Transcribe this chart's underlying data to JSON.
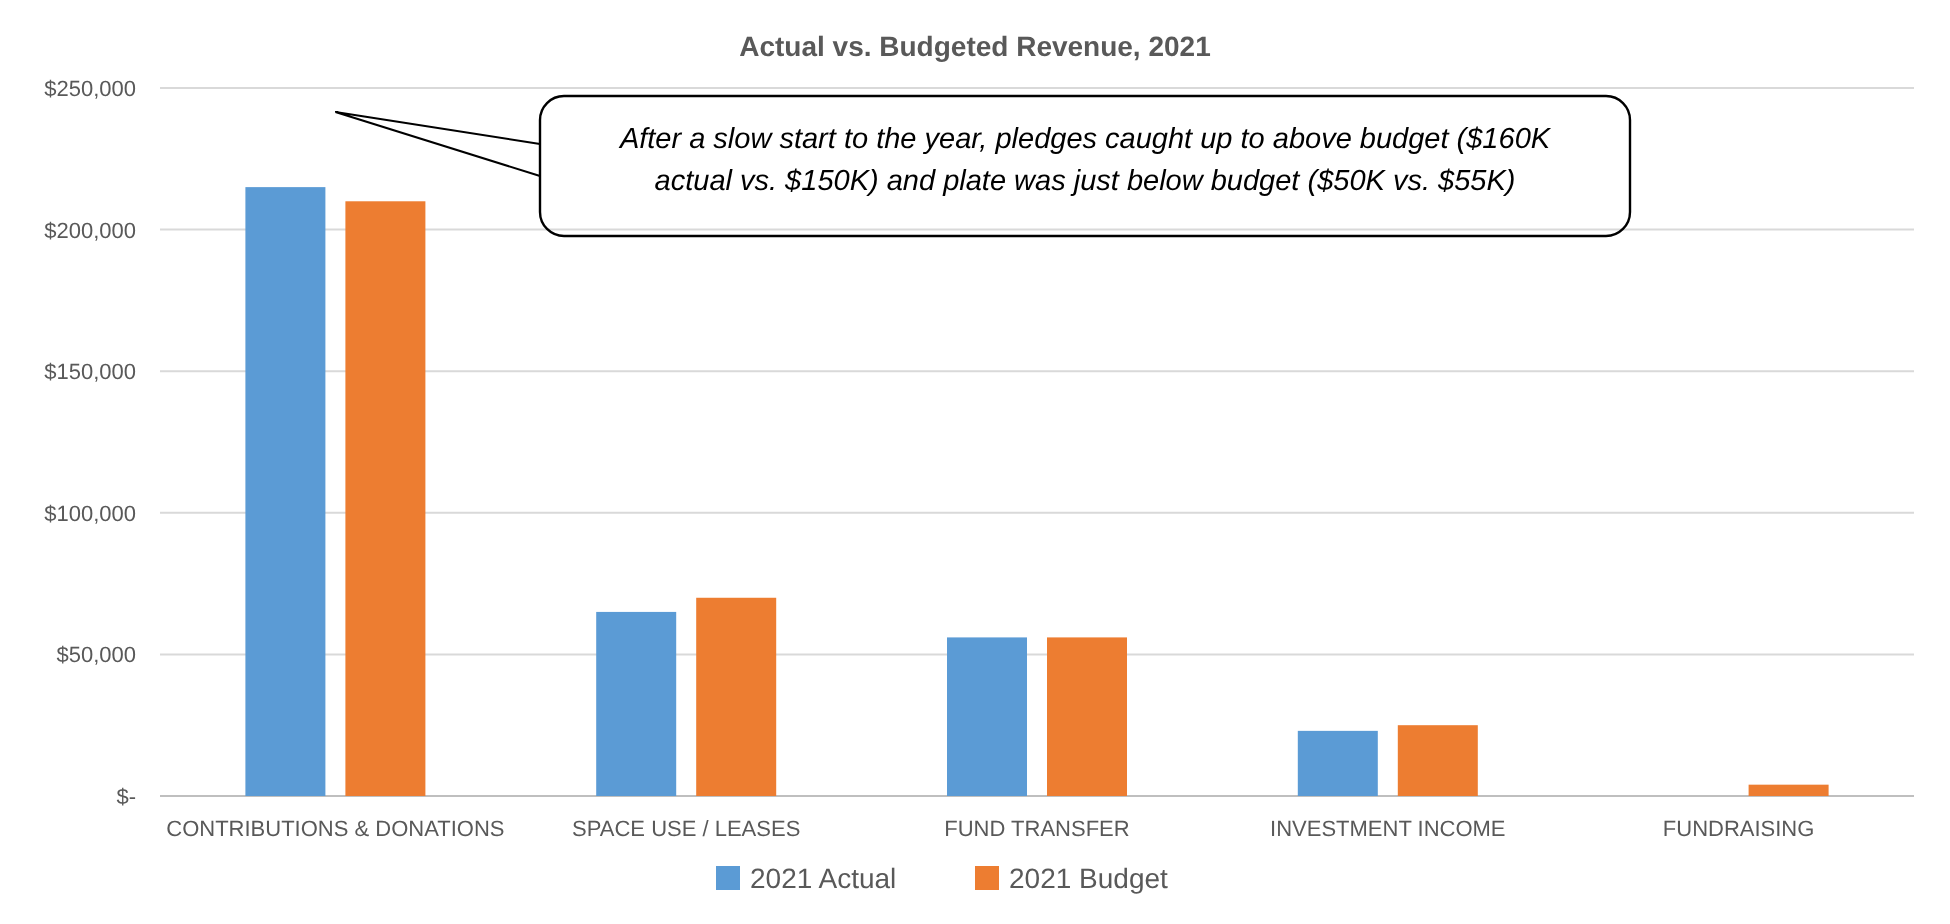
{
  "chart_data": {
    "type": "bar",
    "title": "Actual vs. Budgeted Revenue, 2021",
    "categories": [
      "CONTRIBUTIONS & DONATIONS",
      "SPACE USE / LEASES",
      "FUND TRANSFER",
      "INVESTMENT INCOME",
      "FUNDRAISING"
    ],
    "series": [
      {
        "name": "2021 Actual",
        "color": "#5b9bd5",
        "values": [
          215000,
          65000,
          56000,
          23000,
          0
        ]
      },
      {
        "name": "2021 Budget",
        "color": "#ed7d31",
        "values": [
          210000,
          70000,
          56000,
          25000,
          4000
        ]
      }
    ],
    "ylim": [
      0,
      250000
    ],
    "yticks": [
      {
        "value": 0,
        "label": "$-"
      },
      {
        "value": 50000,
        "label": "$50,000"
      },
      {
        "value": 100000,
        "label": "$100,000"
      },
      {
        "value": 150000,
        "label": "$150,000"
      },
      {
        "value": 200000,
        "label": "$200,000"
      },
      {
        "value": 250000,
        "label": "$250,000"
      }
    ],
    "grid": "y",
    "legend": "bottom",
    "annotations": [
      "After a slow start to the year, pledges caught up to above budget ($160K actual vs. $150K) and plate was just below budget ($50K vs. $55K)"
    ]
  }
}
